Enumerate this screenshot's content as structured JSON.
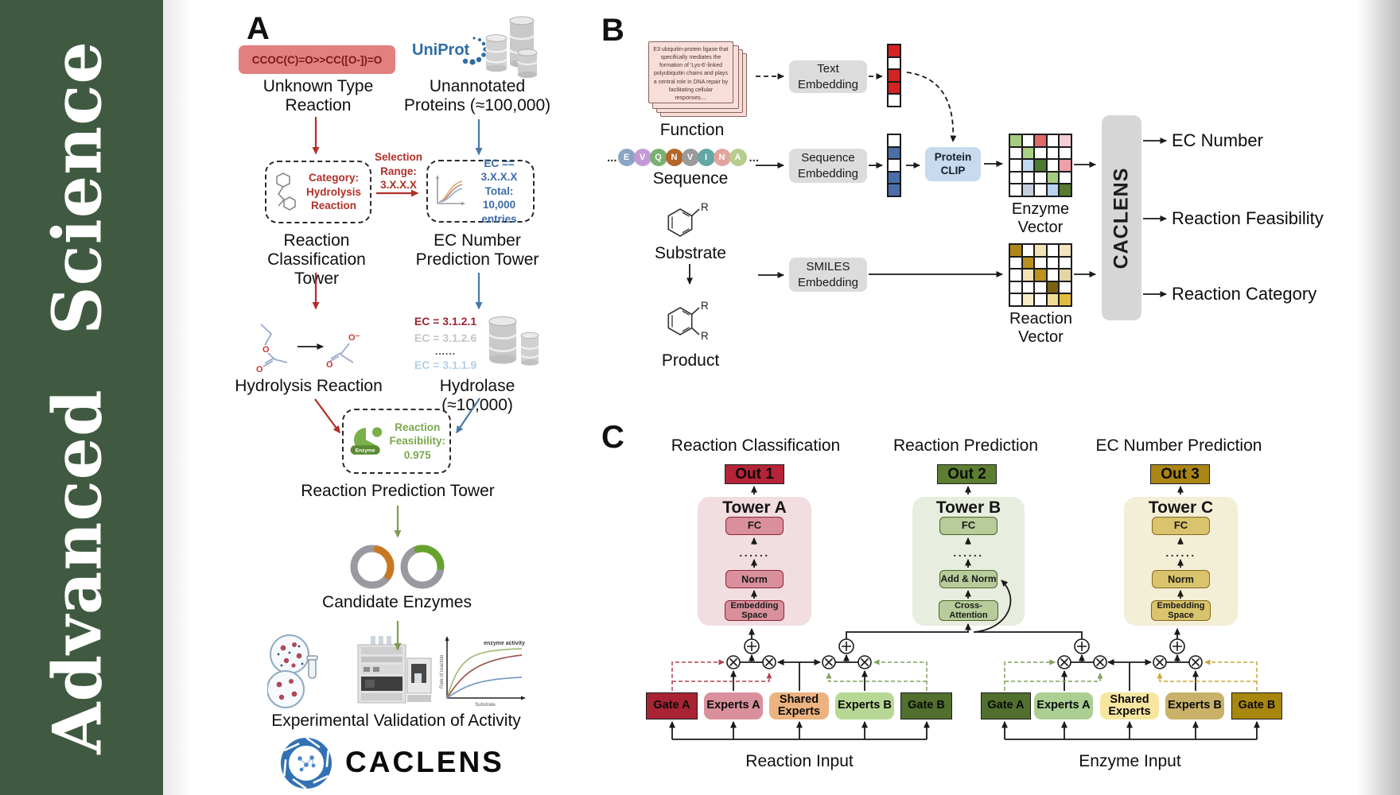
{
  "journal": {
    "name": "Advanced Science"
  },
  "panel_a": {
    "label": "A",
    "smiles_box": "CCOC(C)=O>>CC([O-])=O",
    "unknown_label": "Unknown Type\nReaction",
    "uniprot": "UniProt",
    "unannotated_label": "Unannotated\nProteins (≈100,000)",
    "selection_label": "Selection\nRange:\n3.X.X.X",
    "category_label": "Category:\nHydrolysis\nReaction",
    "ec_box_label": "EC == 3.X.X.X\nTotal: 10,000\nentries",
    "classification_tower": "Reaction\nClassification Tower",
    "ec_tower": "EC Number\nPrediction Tower",
    "hydrolysis_label": "Hydrolysis Reaction",
    "atom_o": "O",
    "atom_o_minus": "O⁻",
    "ec_results": [
      "EC = 3.1.2.1",
      "EC = 3.1.2.6",
      "......",
      "EC = 3.1.1.9"
    ],
    "hydrolase_label": "Hydrolase (≈10,000)",
    "enzyme_badge": "Enzyme",
    "feasibility_label": "Reaction\nFeasibility:\n0.975",
    "prediction_tower": "Reaction Prediction Tower",
    "candidates_label": "Candidate Enzymes",
    "plot": {
      "ylabel": "Rate of reaction",
      "xlabel": "Substrate",
      "note": "enzyme activity"
    },
    "validation_label": "Experimental Validation of Activity",
    "brand": "CACLENS"
  },
  "panel_b": {
    "label": "B",
    "function_card_text": "E3 ubiquitin-protein ligase that specifically mediates the formation of 'Lys-6'-linked polyubiquitin chains and plays a central role in DNA repair by facilitating cellular responses....",
    "function_label": "Function",
    "ellipsis": "...",
    "residues": [
      "E",
      "V",
      "Q",
      "N",
      "V",
      "I",
      "N",
      "A"
    ],
    "sequence_label": "Sequence",
    "substrate_label": "Substrate",
    "product_label": "Product",
    "r_group": "R",
    "text_embedding": "Text\nEmbedding",
    "sequence_embedding": "Sequence\nEmbedding",
    "smiles_embedding": "SMILES\nEmbedding",
    "protein_clip": "Protein\nCLIP",
    "enzyme_vector_label": "Enzyme Vector",
    "reaction_vector_label": "Reaction Vector",
    "caclens": "CACLENS",
    "outputs": [
      "EC Number",
      "Reaction Feasibility",
      "Reaction Category"
    ],
    "text_vector": [
      "#d42323",
      "#ffffff",
      "#d42323",
      "#d42323",
      "#ffffff"
    ],
    "sequence_vector": [
      "#ffffff",
      "#4a6fa8",
      "#ffffff",
      "#4a6fa8",
      "#4a6fa8"
    ],
    "enzyme_vector_cells": [
      [
        "#a6cc80",
        "#ffffff",
        "#e06868",
        "#ffffff",
        "#f6cdd4"
      ],
      [
        "#ffffff",
        "#abd284",
        "#ffffff",
        "#ffffff",
        "#ffffff"
      ],
      [
        "#ffffff",
        "#c2d8ee",
        "#4c7a2e",
        "#ffffff",
        "#f0a0a8"
      ],
      [
        "#ffffff",
        "#ffffff",
        "#ffffff",
        "#a6cc80",
        "#ffffff"
      ],
      [
        "#ffffff",
        "#c4cfdc",
        "#ffffff",
        "#b8d4f0",
        "#567a30"
      ]
    ],
    "reaction_vector_cells": [
      [
        "#ad8818",
        "#ffffff",
        "#f2e4b6",
        "#ffffff",
        "#f2e4c0"
      ],
      [
        "#ffffff",
        "#b89020",
        "#ffffff",
        "#ffffff",
        "#ffffff"
      ],
      [
        "#ffffff",
        "#f2e4b6",
        "#bc9218",
        "#ffffff",
        "#e2d4a4"
      ],
      [
        "#ffffff",
        "#ffffff",
        "#ffffff",
        "#7a6210",
        "#ffffff"
      ],
      [
        "#ffffff",
        "#f6ecc6",
        "#ffffff",
        "#f0dc94",
        "#e2bc3c"
      ]
    ]
  },
  "panel_c": {
    "label": "C",
    "dots": "......",
    "towers": [
      {
        "title": "Reaction Classification",
        "out": "Out 1",
        "tower": "Tower A",
        "block_top": "FC",
        "block_mid": "Norm",
        "block_bottom": "Embedding Space"
      },
      {
        "title": "Reaction Prediction",
        "out": "Out 2",
        "tower": "Tower B",
        "block_top": "FC",
        "block_mid": "Add & Norm",
        "block_bottom": "Cross-Attention"
      },
      {
        "title": "EC Number Prediction",
        "out": "Out 3",
        "tower": "Tower C",
        "block_top": "FC",
        "block_mid": "Norm",
        "block_bottom": "Embedding Space"
      }
    ],
    "moe_left": {
      "gate_a": "Gate A",
      "experts_a": "Experts A",
      "shared": "Shared Experts",
      "experts_b": "Experts B",
      "gate_b": "Gate B",
      "input": "Reaction Input"
    },
    "moe_right": {
      "gate_a": "Gate A",
      "experts_a": "Experts A",
      "shared": "Shared Experts",
      "experts_b": "Experts B",
      "gate_b": "Gate B",
      "input": "Enzyme Input"
    }
  },
  "colors": {
    "sidebar_green": "#3f5a40",
    "red_accent": "#b03028",
    "blue_accent": "#4878a8",
    "green_accent": "#7f9c52",
    "uniprot_blue": "#2e6da4",
    "smiles_box": "#e1807e",
    "embed_gray": "#dcdcdc",
    "clip_blue": "#c7daee",
    "caclens_gray": "#d6d6d6",
    "out1": "#b52438",
    "out2": "#5c7e31",
    "out3": "#aa8514",
    "tower_a_bg": "#f2dde1",
    "tower_b_bg": "#e8eedf",
    "tower_c_bg": "#f3eed6",
    "gate_a_left": "#a82333",
    "experts_a_left": "#d9909c",
    "shared_left": "#ecb280",
    "experts_b_left": "#b7d894",
    "gate_b_left": "#516f2d",
    "gate_a_right": "#516f2d",
    "experts_a_right": "#abce92",
    "shared_right": "#f6e6a0",
    "experts_b_right": "#c9b169",
    "gate_b_right": "#a8870f",
    "residues": [
      "#8aa4c4",
      "#c49ad6",
      "#7ab072",
      "#b5652a",
      "#9a9a9a",
      "#62a8a4",
      "#e2a49e",
      "#b8cc8e"
    ]
  }
}
